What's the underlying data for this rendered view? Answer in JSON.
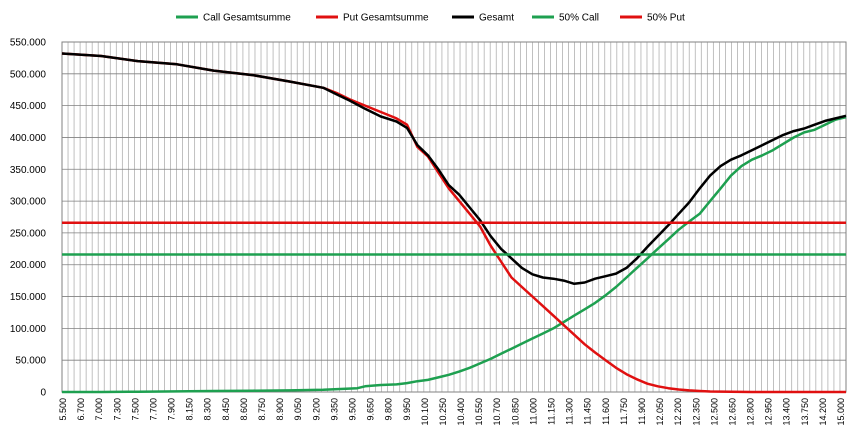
{
  "chart_data": {
    "type": "line",
    "title": "",
    "xlabel": "",
    "ylabel": "",
    "grid": true,
    "legend_position": "top-center",
    "ylim": [
      0,
      550000
    ],
    "y_ticks": [
      0,
      50000,
      100000,
      150000,
      200000,
      250000,
      300000,
      350000,
      400000,
      450000,
      500000,
      550000
    ],
    "y_tick_labels": [
      "0",
      "50.000",
      "100.000",
      "150.000",
      "200.000",
      "250.000",
      "300.000",
      "350.000",
      "400.000",
      "450.000",
      "500.000",
      "550.000"
    ],
    "x_tick_labels": [
      "5.500",
      "6.700",
      "7.000",
      "7.300",
      "7.500",
      "7.700",
      "7.900",
      "8.150",
      "8.300",
      "8.450",
      "8.600",
      "8.750",
      "8.900",
      "9.050",
      "9.200",
      "9.350",
      "9.500",
      "9.650",
      "9.800",
      "9.950",
      "10.100",
      "10.250",
      "10.400",
      "10.550",
      "10.700",
      "10.850",
      "11.000",
      "11.150",
      "11.300",
      "11.450",
      "11.600",
      "11.750",
      "11.900",
      "12.050",
      "12.200",
      "12.350",
      "12.500",
      "12.650",
      "12.800",
      "12.950",
      "13.400",
      "13.750",
      "14.200",
      "15.000"
    ],
    "series": [
      {
        "name": "Call Gesamtsumme",
        "color": "#1ea050",
        "width": 2.5,
        "points": [
          [
            0,
            0
          ],
          [
            15,
            0
          ],
          [
            29,
            500
          ],
          [
            44,
            1000
          ],
          [
            58,
            1500
          ],
          [
            73,
            2000
          ],
          [
            87,
            2500
          ],
          [
            100,
            3500
          ],
          [
            113,
            6000
          ],
          [
            116,
            9000
          ],
          [
            122,
            11000
          ],
          [
            128,
            12000
          ],
          [
            132,
            14000
          ],
          [
            136,
            17000
          ],
          [
            140,
            19000
          ],
          [
            144,
            23000
          ],
          [
            148,
            27000
          ],
          [
            152,
            32000
          ],
          [
            156,
            38000
          ],
          [
            160,
            45000
          ],
          [
            164,
            52000
          ],
          [
            168,
            60000
          ],
          [
            172,
            68000
          ],
          [
            176,
            76000
          ],
          [
            180,
            84000
          ],
          [
            184,
            92000
          ],
          [
            188,
            100000
          ],
          [
            192,
            110000
          ],
          [
            196,
            120000
          ],
          [
            200,
            130000
          ],
          [
            204,
            140000
          ],
          [
            208,
            152000
          ],
          [
            212,
            165000
          ],
          [
            216,
            180000
          ],
          [
            220,
            195000
          ],
          [
            224,
            210000
          ],
          [
            228,
            225000
          ],
          [
            232,
            240000
          ],
          [
            236,
            255000
          ],
          [
            240,
            268000
          ],
          [
            244,
            280000
          ],
          [
            248,
            300000
          ],
          [
            252,
            320000
          ],
          [
            256,
            340000
          ],
          [
            260,
            355000
          ],
          [
            264,
            365000
          ],
          [
            268,
            372000
          ],
          [
            272,
            380000
          ],
          [
            276,
            390000
          ],
          [
            280,
            400000
          ],
          [
            284,
            408000
          ],
          [
            288,
            412000
          ],
          [
            292,
            420000
          ],
          [
            296,
            428000
          ],
          [
            300,
            432000
          ]
        ]
      },
      {
        "name": "Put Gesamtsumme",
        "color": "#e01010",
        "width": 2.5,
        "points": [
          [
            0,
            532000
          ],
          [
            15,
            528000
          ],
          [
            29,
            520000
          ],
          [
            44,
            515000
          ],
          [
            58,
            505000
          ],
          [
            73,
            498000
          ],
          [
            87,
            488000
          ],
          [
            100,
            478000
          ],
          [
            105,
            470000
          ],
          [
            110,
            460000
          ],
          [
            116,
            450000
          ],
          [
            122,
            440000
          ],
          [
            128,
            430000
          ],
          [
            132,
            420000
          ],
          [
            136,
            385000
          ],
          [
            140,
            370000
          ],
          [
            144,
            345000
          ],
          [
            148,
            320000
          ],
          [
            152,
            300000
          ],
          [
            156,
            280000
          ],
          [
            160,
            260000
          ],
          [
            164,
            230000
          ],
          [
            168,
            205000
          ],
          [
            172,
            180000
          ],
          [
            176,
            165000
          ],
          [
            180,
            150000
          ],
          [
            184,
            135000
          ],
          [
            188,
            120000
          ],
          [
            192,
            105000
          ],
          [
            196,
            90000
          ],
          [
            200,
            75000
          ],
          [
            204,
            62000
          ],
          [
            208,
            50000
          ],
          [
            212,
            38000
          ],
          [
            216,
            28000
          ],
          [
            220,
            20000
          ],
          [
            224,
            13000
          ],
          [
            228,
            9000
          ],
          [
            232,
            6000
          ],
          [
            236,
            4000
          ],
          [
            240,
            2500
          ],
          [
            244,
            1500
          ],
          [
            248,
            800
          ],
          [
            256,
            300
          ],
          [
            264,
            0
          ],
          [
            300,
            0
          ]
        ]
      },
      {
        "name": "Gesamt",
        "color": "#000000",
        "width": 2.5,
        "points": [
          [
            0,
            532000
          ],
          [
            15,
            528000
          ],
          [
            29,
            520000
          ],
          [
            44,
            515000
          ],
          [
            58,
            505000
          ],
          [
            73,
            498000
          ],
          [
            87,
            488000
          ],
          [
            100,
            478000
          ],
          [
            105,
            468000
          ],
          [
            110,
            458000
          ],
          [
            116,
            445000
          ],
          [
            122,
            433000
          ],
          [
            128,
            425000
          ],
          [
            132,
            415000
          ],
          [
            136,
            388000
          ],
          [
            140,
            372000
          ],
          [
            144,
            350000
          ],
          [
            148,
            325000
          ],
          [
            152,
            310000
          ],
          [
            156,
            290000
          ],
          [
            160,
            270000
          ],
          [
            164,
            245000
          ],
          [
            168,
            225000
          ],
          [
            172,
            210000
          ],
          [
            176,
            195000
          ],
          [
            180,
            185000
          ],
          [
            184,
            180000
          ],
          [
            188,
            178000
          ],
          [
            192,
            175000
          ],
          [
            196,
            170000
          ],
          [
            200,
            172000
          ],
          [
            204,
            178000
          ],
          [
            208,
            182000
          ],
          [
            212,
            186000
          ],
          [
            216,
            195000
          ],
          [
            220,
            210000
          ],
          [
            224,
            228000
          ],
          [
            228,
            245000
          ],
          [
            232,
            262000
          ],
          [
            236,
            280000
          ],
          [
            240,
            298000
          ],
          [
            244,
            320000
          ],
          [
            248,
            340000
          ],
          [
            252,
            355000
          ],
          [
            256,
            365000
          ],
          [
            260,
            372000
          ],
          [
            264,
            380000
          ],
          [
            268,
            388000
          ],
          [
            272,
            396000
          ],
          [
            276,
            404000
          ],
          [
            280,
            410000
          ],
          [
            284,
            414000
          ],
          [
            288,
            420000
          ],
          [
            292,
            426000
          ],
          [
            296,
            430000
          ],
          [
            300,
            434000
          ]
        ]
      },
      {
        "name": "50% Call",
        "color": "#1ea050",
        "width": 2.5,
        "points": [
          [
            0,
            216000
          ],
          [
            300,
            216000
          ]
        ]
      },
      {
        "name": "50% Put",
        "color": "#e01010",
        "width": 2.5,
        "points": [
          [
            0,
            266000
          ],
          [
            300,
            266000
          ]
        ]
      }
    ]
  }
}
